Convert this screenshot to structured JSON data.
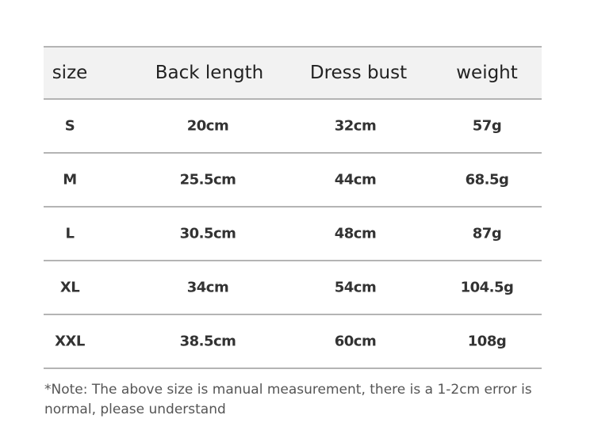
{
  "table": {
    "headers": [
      "size",
      "Back length",
      "Dress bust",
      "weight"
    ],
    "rows": [
      [
        "S",
        "20cm",
        "32cm",
        "57g"
      ],
      [
        "M",
        "25.5cm",
        "44cm",
        "68.5g"
      ],
      [
        "L",
        "30.5cm",
        "48cm",
        "87g"
      ],
      [
        "XL",
        "34cm",
        "54cm",
        "104.5g"
      ],
      [
        "XXL",
        "38.5cm",
        "60cm",
        "108g"
      ]
    ]
  },
  "note": "*Note: The above size is manual measurement, there is a 1-2cm error is normal, please understand"
}
